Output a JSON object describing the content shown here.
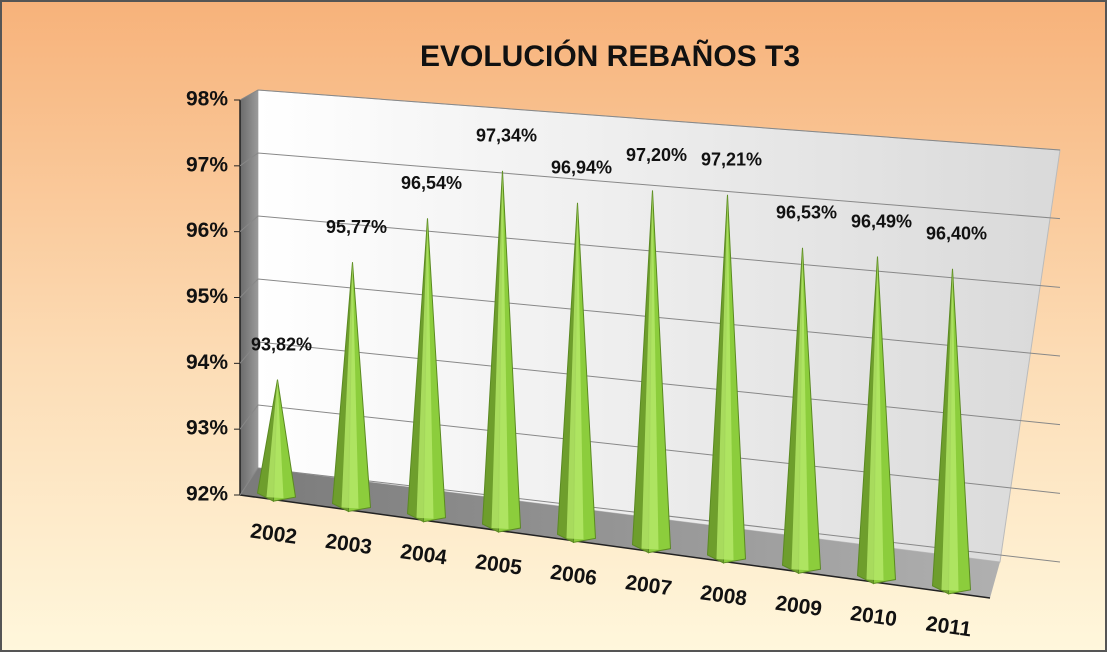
{
  "chart_data": {
    "type": "pyramid3d",
    "title": "EVOLUCIÓN REBAÑOS T3",
    "categories": [
      "2002",
      "2003",
      "2004",
      "2005",
      "2006",
      "2007",
      "2008",
      "2009",
      "2010",
      "2011"
    ],
    "values": [
      93.82,
      95.77,
      96.54,
      97.34,
      96.94,
      97.2,
      97.21,
      96.53,
      96.49,
      96.4
    ],
    "value_labels": [
      "93,82%",
      "95,77%",
      "96,54%",
      "97,34%",
      "96,94%",
      "97,20%",
      "97,21%",
      "96,53%",
      "96,49%",
      "96,40%"
    ],
    "color": "#8ccd3c",
    "ylim": [
      92,
      98
    ],
    "yticks": [
      {
        "value": 92,
        "label": "92%"
      },
      {
        "value": 93,
        "label": "93%"
      },
      {
        "value": 94,
        "label": "94%"
      },
      {
        "value": 95,
        "label": "95%"
      },
      {
        "value": 96,
        "label": "96%"
      },
      {
        "value": 97,
        "label": "97%"
      },
      {
        "value": 98,
        "label": "98%"
      }
    ],
    "grid": true
  }
}
